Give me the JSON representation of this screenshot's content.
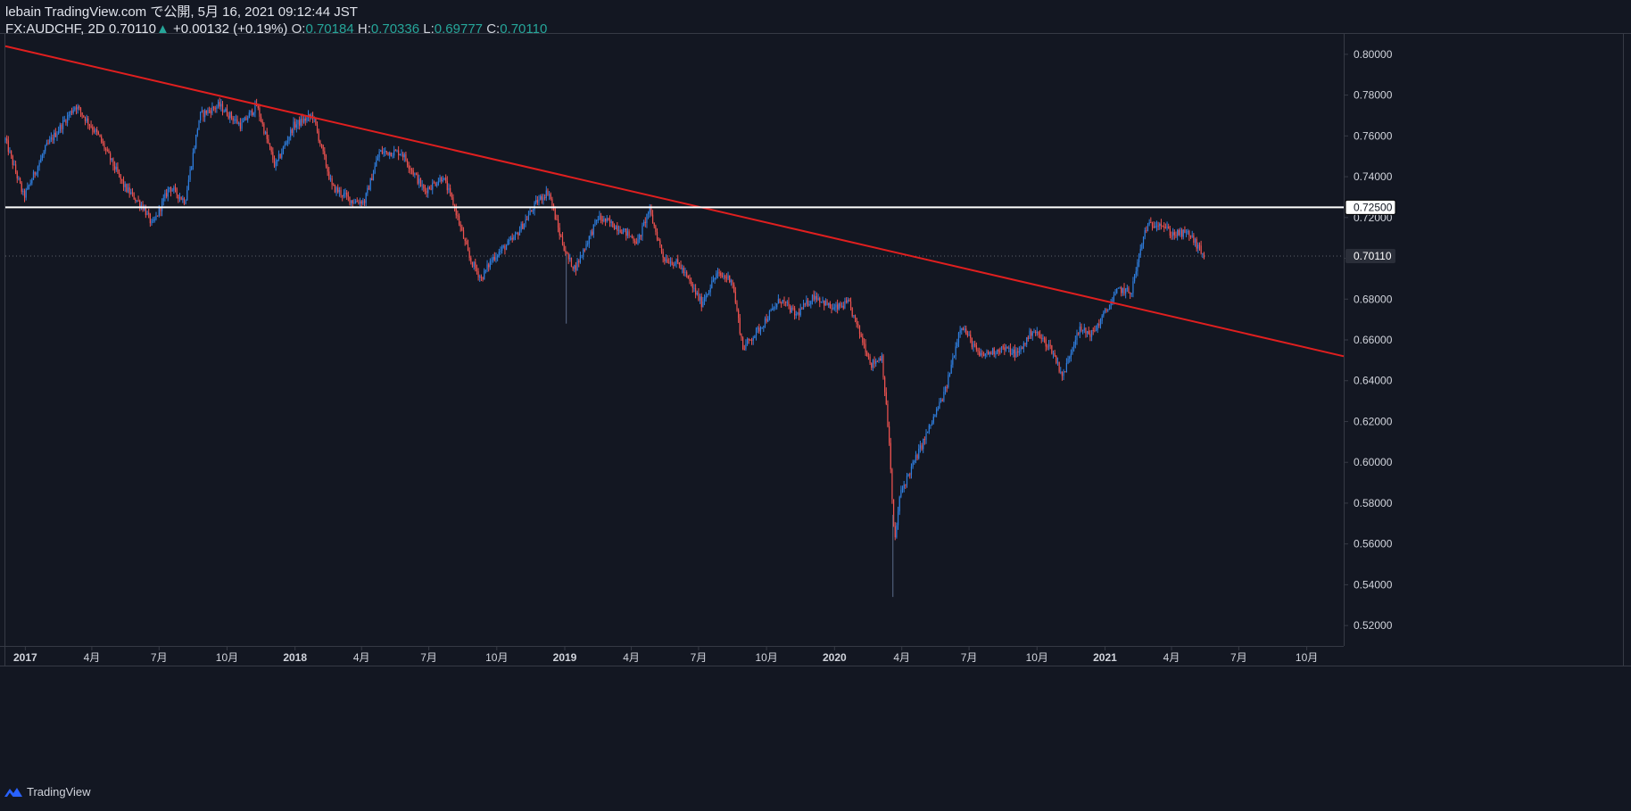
{
  "header": {
    "publish_line": "lebain TradingView.com で公開, 5月 16, 2021 09:12:44 JST",
    "symbol": "FX:AUDCHF, 2D",
    "last": "0.70110",
    "change_arrow": "▲",
    "change": "+0.00132 (+0.19%)",
    "o_label": "O:",
    "o": "0.70184",
    "h_label": "H:",
    "h": "0.70336",
    "l_label": "L:",
    "l": "0.69777",
    "c_label": "C:",
    "c": "0.70110"
  },
  "footer": {
    "brand": "TradingView",
    "logo_icon": "tradingview-logo-icon"
  },
  "colors": {
    "background": "#131722",
    "up": "#2f7fe0",
    "down": "#ef5350",
    "trendline": "#e01f1f",
    "resistance": "#ffffff",
    "text": "#d1d4dc",
    "grid": "#363a45",
    "teal": "#26a69a"
  },
  "chart_data": {
    "type": "candlestick",
    "symbol": "FX:AUDCHF",
    "interval": "2D",
    "x_range": [
      "2016-12-05",
      "2021-11-20"
    ],
    "ylim": [
      0.51,
      0.81
    ],
    "y_ticks": [
      0.52,
      0.54,
      0.56,
      0.58,
      0.6,
      0.62,
      0.64,
      0.66,
      0.68,
      0.7,
      0.72,
      0.74,
      0.76,
      0.78,
      0.8
    ],
    "x_ticks": [
      {
        "date": "2017-01-01",
        "label": "2017"
      },
      {
        "date": "2017-04-01",
        "label": "4月"
      },
      {
        "date": "2017-07-01",
        "label": "7月"
      },
      {
        "date": "2017-10-01",
        "label": "10月"
      },
      {
        "date": "2018-01-01",
        "label": "2018"
      },
      {
        "date": "2018-04-01",
        "label": "4月"
      },
      {
        "date": "2018-07-01",
        "label": "7月"
      },
      {
        "date": "2018-10-01",
        "label": "10月"
      },
      {
        "date": "2019-01-01",
        "label": "2019"
      },
      {
        "date": "2019-04-01",
        "label": "4月"
      },
      {
        "date": "2019-07-01",
        "label": "7月"
      },
      {
        "date": "2019-10-01",
        "label": "10月"
      },
      {
        "date": "2020-01-01",
        "label": "2020"
      },
      {
        "date": "2020-04-01",
        "label": "4月"
      },
      {
        "date": "2020-07-01",
        "label": "7月"
      },
      {
        "date": "2020-10-01",
        "label": "10月"
      },
      {
        "date": "2021-01-01",
        "label": "2021"
      },
      {
        "date": "2021-04-01",
        "label": "4月"
      },
      {
        "date": "2021-07-01",
        "label": "7月"
      },
      {
        "date": "2021-10-01",
        "label": "10月"
      }
    ],
    "price_path": [
      [
        "2016-12-05",
        0.758
      ],
      [
        "2016-12-30",
        0.73
      ],
      [
        "2017-01-30",
        0.755
      ],
      [
        "2017-03-10",
        0.775
      ],
      [
        "2017-04-10",
        0.76
      ],
      [
        "2017-05-15",
        0.735
      ],
      [
        "2017-06-10",
        0.725
      ],
      [
        "2017-06-22",
        0.716
      ],
      [
        "2017-07-15",
        0.735
      ],
      [
        "2017-08-05",
        0.728
      ],
      [
        "2017-08-25",
        0.77
      ],
      [
        "2017-09-20",
        0.775
      ],
      [
        "2017-10-20",
        0.765
      ],
      [
        "2017-11-10",
        0.775
      ],
      [
        "2017-12-05",
        0.745
      ],
      [
        "2017-12-30",
        0.765
      ],
      [
        "2018-01-25",
        0.77
      ],
      [
        "2018-02-20",
        0.735
      ],
      [
        "2018-03-20",
        0.728
      ],
      [
        "2018-04-05",
        0.728
      ],
      [
        "2018-04-25",
        0.752
      ],
      [
        "2018-05-25",
        0.752
      ],
      [
        "2018-06-25",
        0.733
      ],
      [
        "2018-07-20",
        0.74
      ],
      [
        "2018-08-05",
        0.725
      ],
      [
        "2018-08-25",
        0.7
      ],
      [
        "2018-09-10",
        0.69
      ],
      [
        "2018-09-25",
        0.7
      ],
      [
        "2018-10-25",
        0.71
      ],
      [
        "2018-11-25",
        0.728
      ],
      [
        "2018-12-10",
        0.733
      ],
      [
        "2018-12-25",
        0.712
      ],
      [
        "2019-01-05",
        0.7
      ],
      [
        "2019-01-15",
        0.695
      ],
      [
        "2019-02-15",
        0.72
      ],
      [
        "2019-03-15",
        0.715
      ],
      [
        "2019-04-10",
        0.708
      ],
      [
        "2019-04-25",
        0.724
      ],
      [
        "2019-05-15",
        0.7
      ],
      [
        "2019-06-05",
        0.697
      ],
      [
        "2019-07-05",
        0.678
      ],
      [
        "2019-07-25",
        0.692
      ],
      [
        "2019-08-15",
        0.69
      ],
      [
        "2019-08-30",
        0.656
      ],
      [
        "2019-09-20",
        0.665
      ],
      [
        "2019-10-20",
        0.68
      ],
      [
        "2019-11-10",
        0.672
      ],
      [
        "2019-12-05",
        0.682
      ],
      [
        "2019-12-30",
        0.675
      ],
      [
        "2020-01-20",
        0.678
      ],
      [
        "2020-02-20",
        0.648
      ],
      [
        "2020-03-05",
        0.652
      ],
      [
        "2020-03-15",
        0.61
      ],
      [
        "2020-03-22",
        0.56
      ],
      [
        "2020-03-30",
        0.585
      ],
      [
        "2020-04-30",
        0.61
      ],
      [
        "2020-05-30",
        0.635
      ],
      [
        "2020-06-20",
        0.668
      ],
      [
        "2020-07-15",
        0.652
      ],
      [
        "2020-08-15",
        0.656
      ],
      [
        "2020-09-05",
        0.653
      ],
      [
        "2020-09-25",
        0.665
      ],
      [
        "2020-10-20",
        0.656
      ],
      [
        "2020-11-05",
        0.642
      ],
      [
        "2020-11-25",
        0.665
      ],
      [
        "2020-12-15",
        0.663
      ],
      [
        "2020-12-30",
        0.672
      ],
      [
        "2021-01-20",
        0.685
      ],
      [
        "2021-02-05",
        0.683
      ],
      [
        "2021-02-25",
        0.715
      ],
      [
        "2021-03-15",
        0.718
      ],
      [
        "2021-04-01",
        0.712
      ],
      [
        "2021-04-25",
        0.712
      ],
      [
        "2021-05-15",
        0.701
      ]
    ],
    "wicks": [
      [
        "2019-01-03",
        0.668
      ],
      [
        "2020-03-20",
        0.534
      ]
    ],
    "lines": [
      {
        "kind": "trendline",
        "from": [
          "2016-12-05",
          0.804
        ],
        "to": [
          "2021-11-20",
          0.652
        ]
      },
      {
        "kind": "horizontal",
        "value": 0.725
      }
    ],
    "price_labels": [
      {
        "value": 0.725,
        "text": "0.72500",
        "style": "resistance"
      },
      {
        "value": 0.7011,
        "text": "0.70110",
        "style": "last"
      }
    ]
  }
}
